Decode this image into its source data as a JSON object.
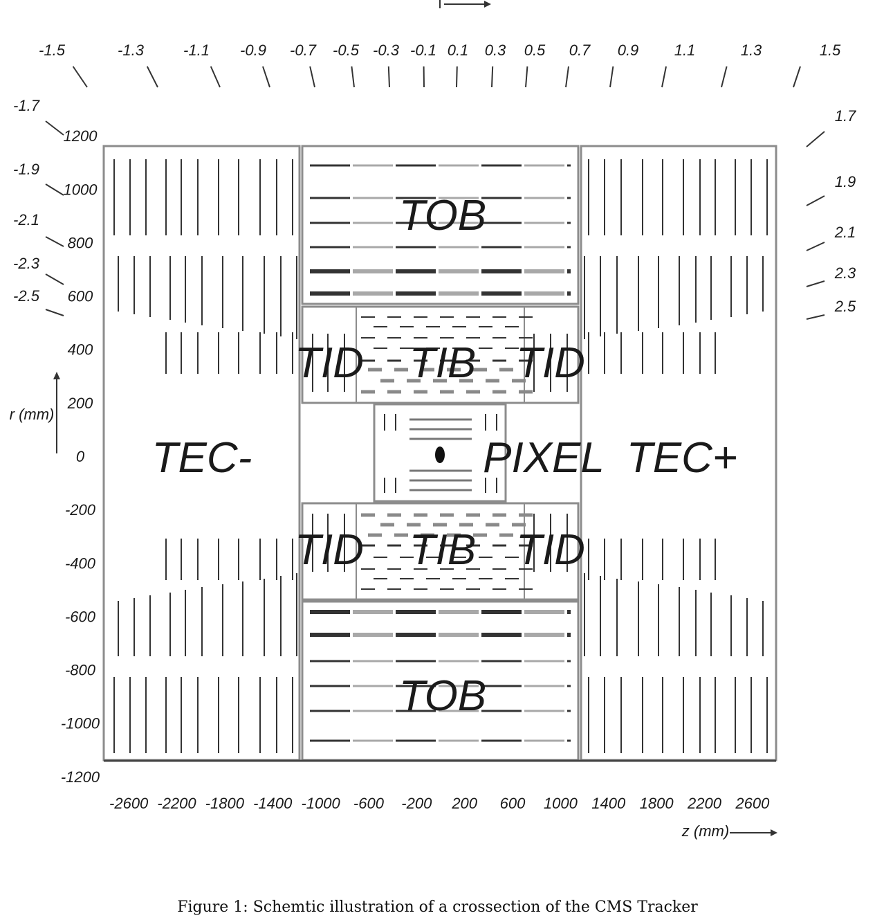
{
  "figure": {
    "caption": "Figure 1: Schemtic illustration of a crossection of the CMS Tracker"
  },
  "axes": {
    "z_label": "z (mm)",
    "r_label": "r (mm)",
    "eta_label": "η",
    "z_ticks": [
      -2600,
      -2200,
      -1800,
      -1400,
      -1000,
      -600,
      -200,
      200,
      600,
      1000,
      1400,
      1800,
      2200,
      2600
    ],
    "r_ticks": [
      1200,
      1000,
      800,
      600,
      400,
      200,
      0,
      -200,
      -400,
      -600,
      -800,
      -1000,
      -1200
    ],
    "eta_top": [
      "-1.5",
      "-1.3",
      "-1.1",
      "-0.9",
      "-0.7",
      "-0.5",
      "-0.3",
      "-0.1",
      "0.1",
      "0.3",
      "0.5",
      "0.7",
      "0.9",
      "1.1",
      "1.3",
      "1.5"
    ],
    "eta_left": [
      "-1.7",
      "-1.9",
      "-2.1",
      "-2.3",
      "-2.5"
    ],
    "eta_right": [
      "1.7",
      "1.9",
      "2.1",
      "2.3",
      "2.5"
    ]
  },
  "detectors": {
    "tob": "TOB",
    "tib": "TIB",
    "tid": "TID",
    "pixel": "PIXEL",
    "tec_minus": "TEC-",
    "tec_plus": "TEC+"
  },
  "colors": {
    "frame": "#8c8c8c",
    "dark_line": "#333333",
    "light_line": "#a8a8a8"
  }
}
